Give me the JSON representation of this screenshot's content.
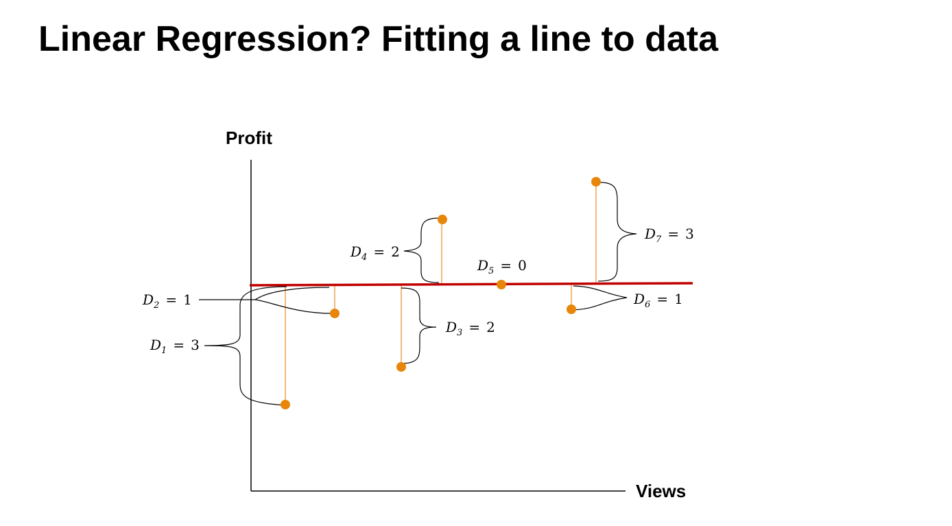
{
  "slide": {
    "title": "Linear Regression? Fitting a line to data"
  },
  "colors": {
    "regression_line": "#c00000",
    "points": "#e8860c",
    "residuals": "#f0a050",
    "axes": "#000000"
  },
  "chart_data": {
    "type": "scatter",
    "xlabel": "Views",
    "ylabel": "Profit",
    "regression_line": {
      "label": ""
    },
    "residual_labels": [
      {
        "var": "D",
        "sub": "1",
        "eq": "=",
        "val": "3"
      },
      {
        "var": "D",
        "sub": "2",
        "eq": "=",
        "val": "1"
      },
      {
        "var": "D",
        "sub": "3",
        "eq": "=",
        "val": "2"
      },
      {
        "var": "D",
        "sub": "4",
        "eq": "=",
        "val": "2"
      },
      {
        "var": "D",
        "sub": "5",
        "eq": "=",
        "val": "0"
      },
      {
        "var": "D",
        "sub": "6",
        "eq": "=",
        "val": "1"
      },
      {
        "var": "D",
        "sub": "7",
        "eq": "=",
        "val": "3"
      }
    ]
  }
}
